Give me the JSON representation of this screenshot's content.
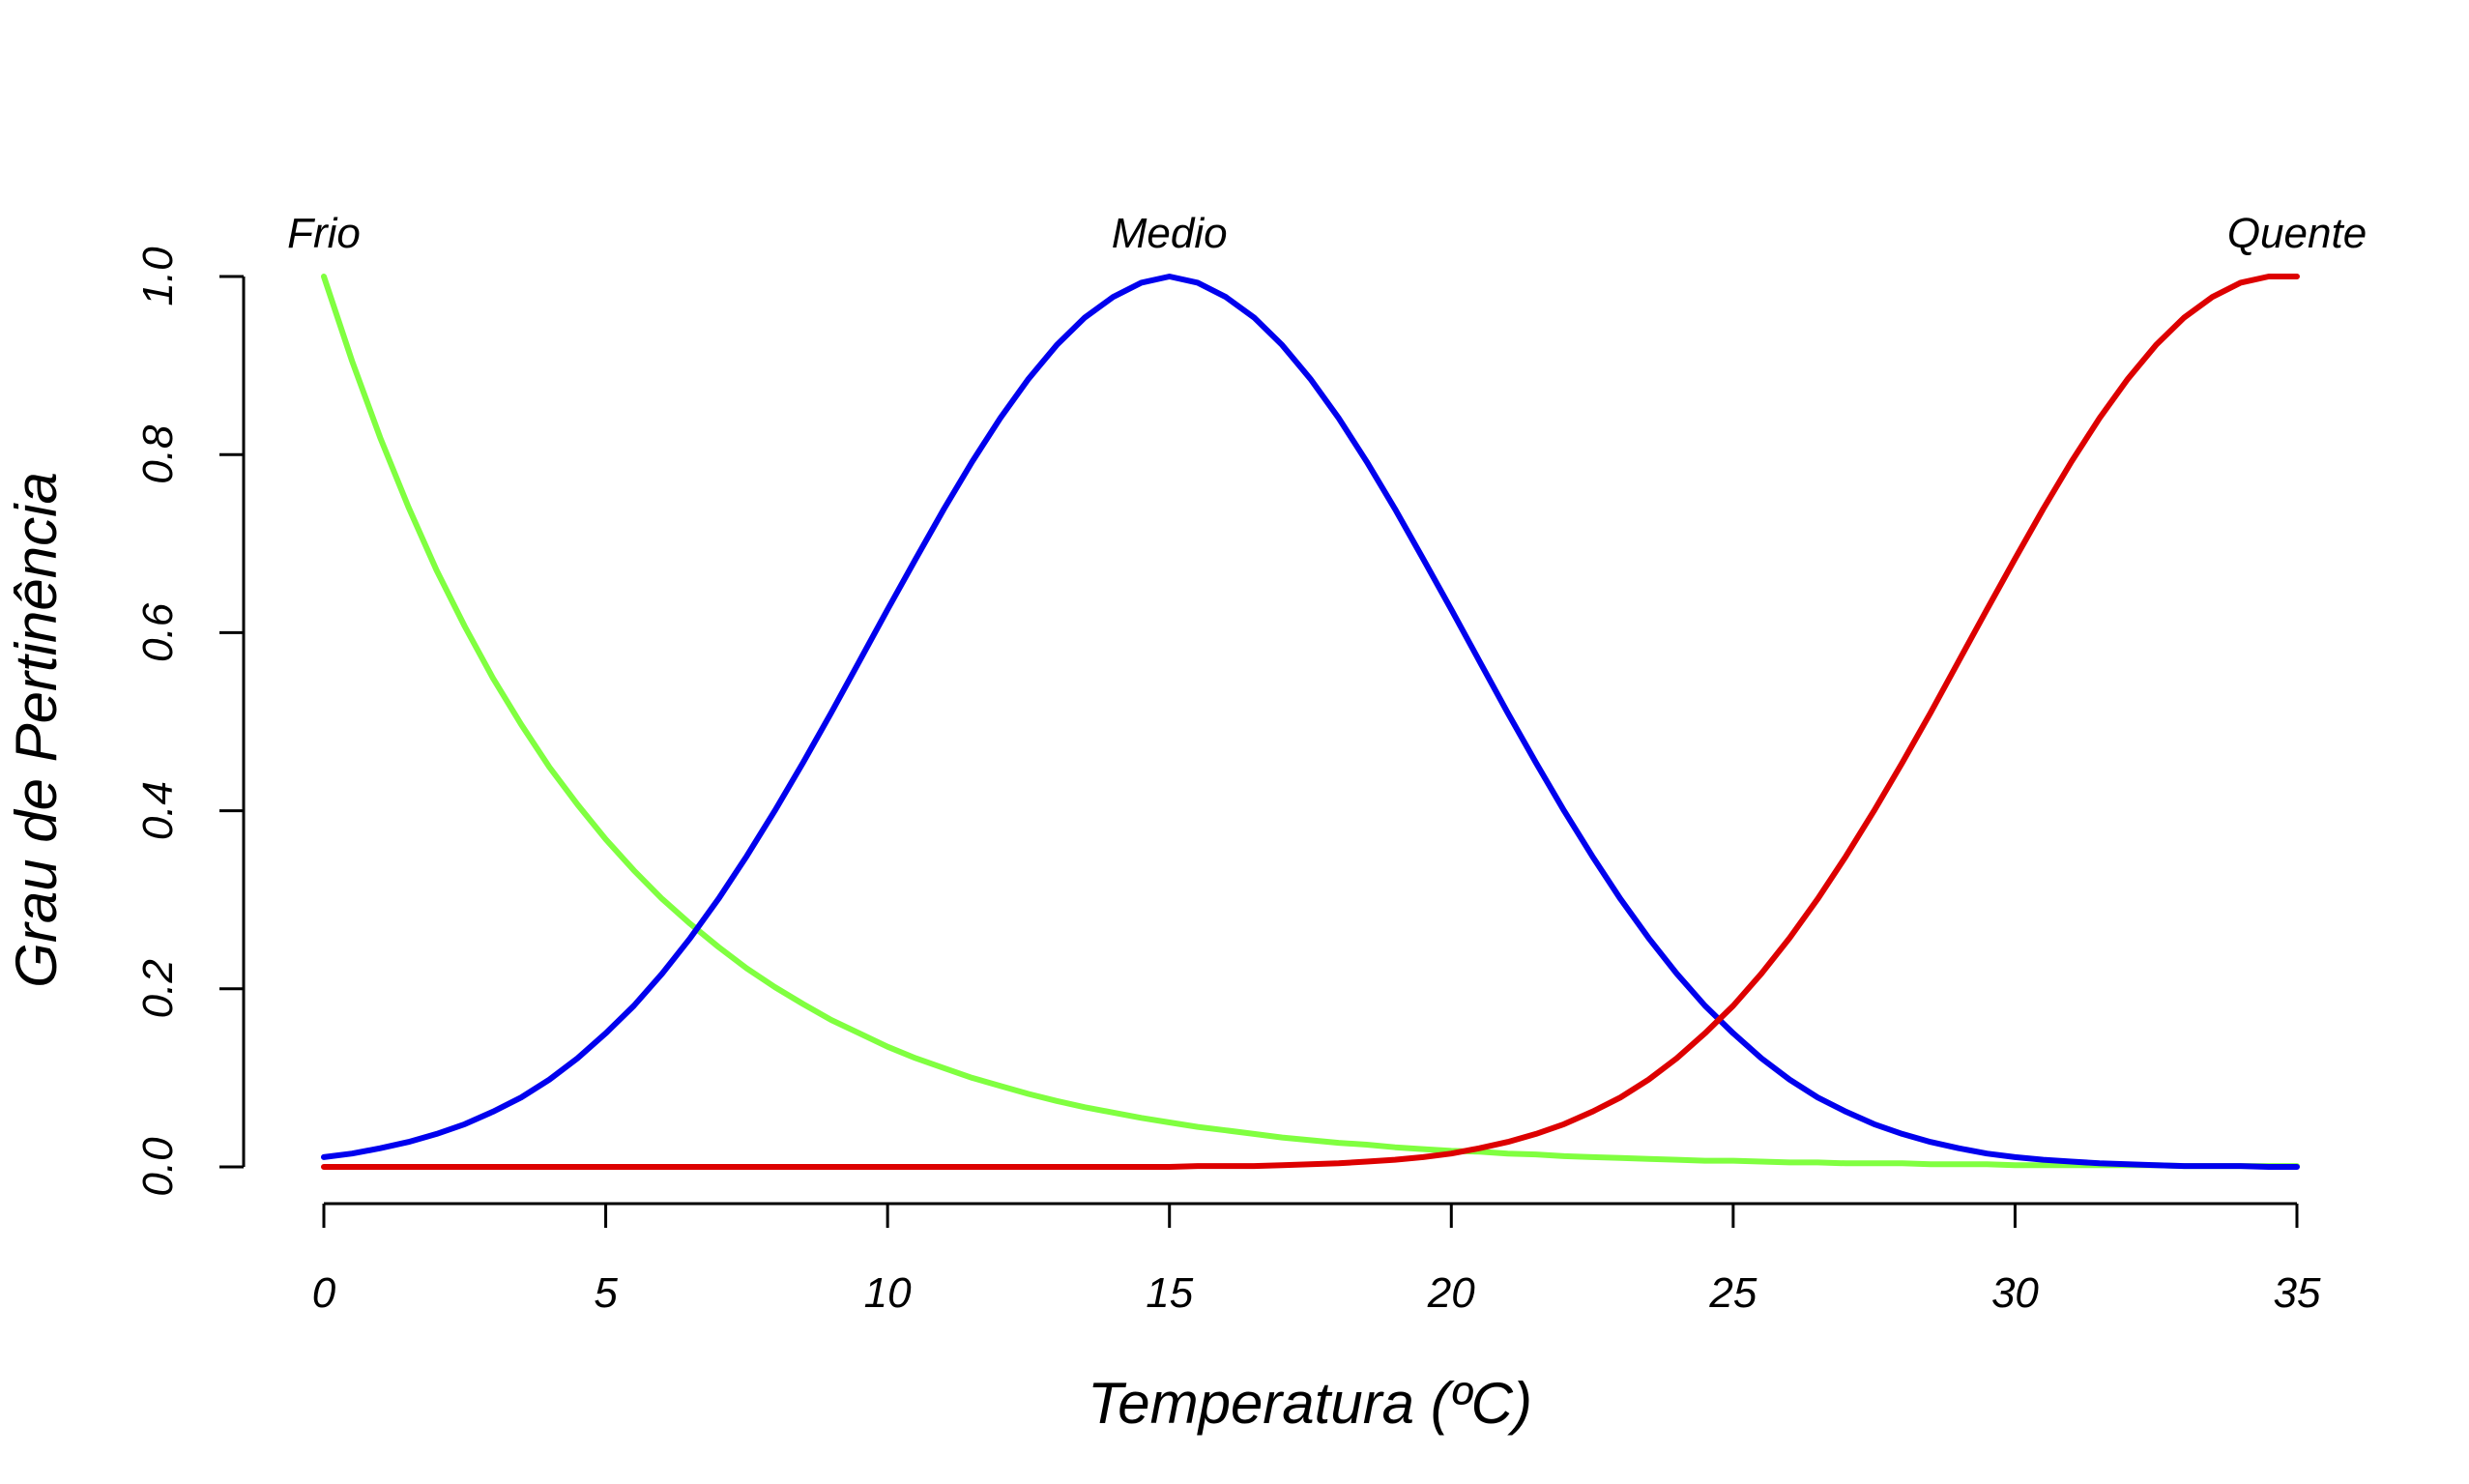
{
  "chart_data": {
    "type": "line",
    "title": "",
    "xlabel": "Temperatura (ºC)",
    "ylabel": "Grau de Pertinência",
    "xlim": [
      0,
      35
    ],
    "ylim": [
      0,
      1
    ],
    "x_ticks": [
      "0",
      "5",
      "10",
      "15",
      "20",
      "25",
      "30",
      "35"
    ],
    "y_ticks": [
      "0.0",
      "0.2",
      "0.4",
      "0.6",
      "0.8",
      "1.0"
    ],
    "grid": false,
    "legend": "none",
    "series": [
      {
        "name": "Frio",
        "color": "#80ff40",
        "label_at": {
          "x": 0,
          "y": 1.0
        },
        "x": [
          0,
          0.5,
          1,
          1.5,
          2,
          2.5,
          3,
          3.5,
          4,
          4.5,
          5,
          5.5,
          6,
          6.5,
          7,
          7.5,
          8,
          8.5,
          9,
          9.5,
          10,
          10.5,
          11,
          11.5,
          12,
          12.5,
          13,
          13.5,
          14,
          14.5,
          15,
          15.5,
          16,
          16.5,
          17,
          17.5,
          18,
          18.5,
          19,
          19.5,
          20,
          20.5,
          21,
          21.5,
          22,
          22.5,
          23,
          23.5,
          24,
          24.5,
          25,
          25.5,
          26,
          26.5,
          27,
          27.5,
          28,
          28.5,
          29,
          29.5,
          30,
          30.5,
          31,
          31.5,
          32,
          32.5,
          33,
          33.5,
          34,
          34.5,
          35
        ],
        "y": [
          1.0,
          0.905,
          0.819,
          0.741,
          0.67,
          0.607,
          0.549,
          0.497,
          0.449,
          0.407,
          0.368,
          0.333,
          0.301,
          0.273,
          0.247,
          0.223,
          0.202,
          0.183,
          0.165,
          0.15,
          0.135,
          0.122,
          0.111,
          0.1,
          0.091,
          0.082,
          0.074,
          0.067,
          0.061,
          0.055,
          0.05,
          0.045,
          0.041,
          0.037,
          0.033,
          0.03,
          0.027,
          0.025,
          0.022,
          0.02,
          0.018,
          0.017,
          0.015,
          0.014,
          0.012,
          0.011,
          0.01,
          0.009,
          0.008,
          0.007,
          0.007,
          0.006,
          0.005,
          0.005,
          0.004,
          0.004,
          0.004,
          0.003,
          0.003,
          0.003,
          0.002,
          0.002,
          0.002,
          0.002,
          0.002,
          0.002,
          0.001,
          0.001,
          0.001,
          0.001,
          0.001
        ]
      },
      {
        "name": "Medio",
        "color": "#0000ee",
        "label_at": {
          "x": 15,
          "y": 1.0
        },
        "x": [
          0,
          0.5,
          1,
          1.5,
          2,
          2.5,
          3,
          3.5,
          4,
          4.5,
          5,
          5.5,
          6,
          6.5,
          7,
          7.5,
          8,
          8.5,
          9,
          9.5,
          10,
          10.5,
          11,
          11.5,
          12,
          12.5,
          13,
          13.5,
          14,
          14.5,
          15,
          15.5,
          16,
          16.5,
          17,
          17.5,
          18,
          18.5,
          19,
          19.5,
          20,
          20.5,
          21,
          21.5,
          22,
          22.5,
          23,
          23.5,
          24,
          24.5,
          25,
          25.5,
          26,
          26.5,
          27,
          27.5,
          28,
          28.5,
          29,
          29.5,
          30,
          30.5,
          31,
          31.5,
          32,
          32.5,
          33,
          33.5,
          34,
          34.5,
          35
        ],
        "y": [
          0.011,
          0.015,
          0.021,
          0.028,
          0.037,
          0.048,
          0.062,
          0.078,
          0.098,
          0.122,
          0.15,
          0.181,
          0.217,
          0.257,
          0.301,
          0.349,
          0.4,
          0.454,
          0.51,
          0.568,
          0.626,
          0.683,
          0.739,
          0.792,
          0.841,
          0.885,
          0.923,
          0.954,
          0.977,
          0.993,
          1.0,
          0.993,
          0.977,
          0.954,
          0.923,
          0.885,
          0.841,
          0.792,
          0.739,
          0.683,
          0.626,
          0.568,
          0.51,
          0.454,
          0.4,
          0.349,
          0.301,
          0.257,
          0.217,
          0.181,
          0.15,
          0.122,
          0.098,
          0.078,
          0.062,
          0.048,
          0.037,
          0.028,
          0.021,
          0.015,
          0.011,
          0.008,
          0.006,
          0.004,
          0.003,
          0.002,
          0.001,
          0.001,
          0.001,
          0.0,
          0.0
        ]
      },
      {
        "name": "Quente",
        "color": "#dd0000",
        "label_at": {
          "x": 35,
          "y": 1.0
        },
        "x": [
          0,
          0.5,
          1,
          1.5,
          2,
          2.5,
          3,
          3.5,
          4,
          4.5,
          5,
          5.5,
          6,
          6.5,
          7,
          7.5,
          8,
          8.5,
          9,
          9.5,
          10,
          10.5,
          11,
          11.5,
          12,
          12.5,
          13,
          13.5,
          14,
          14.5,
          15,
          15.5,
          16,
          16.5,
          17,
          17.5,
          18,
          18.5,
          19,
          19.5,
          20,
          20.5,
          21,
          21.5,
          22,
          22.5,
          23,
          23.5,
          24,
          24.5,
          25,
          25.5,
          26,
          26.5,
          27,
          27.5,
          28,
          28.5,
          29,
          29.5,
          30,
          30.5,
          31,
          31.5,
          32,
          32.5,
          33,
          33.5,
          34,
          34.5,
          35
        ],
        "y": [
          0.0,
          0.0,
          0.0,
          0.0,
          0.0,
          0.0,
          0.0,
          0.0,
          0.0,
          0.0,
          0.0,
          0.0,
          0.0,
          0.0,
          0.0,
          0.0,
          0.0,
          0.0,
          0.0,
          0.0,
          0.0,
          0.0,
          0.0,
          0.0,
          0.0,
          0.0,
          0.0,
          0.0,
          0.0,
          0.0,
          0.0,
          0.001,
          0.001,
          0.001,
          0.002,
          0.003,
          0.004,
          0.006,
          0.008,
          0.011,
          0.015,
          0.021,
          0.028,
          0.037,
          0.048,
          0.062,
          0.078,
          0.098,
          0.122,
          0.15,
          0.181,
          0.217,
          0.257,
          0.301,
          0.349,
          0.4,
          0.454,
          0.51,
          0.568,
          0.626,
          0.683,
          0.739,
          0.792,
          0.841,
          0.885,
          0.923,
          0.954,
          0.977,
          0.993,
          1.0,
          1.0
        ]
      }
    ]
  }
}
